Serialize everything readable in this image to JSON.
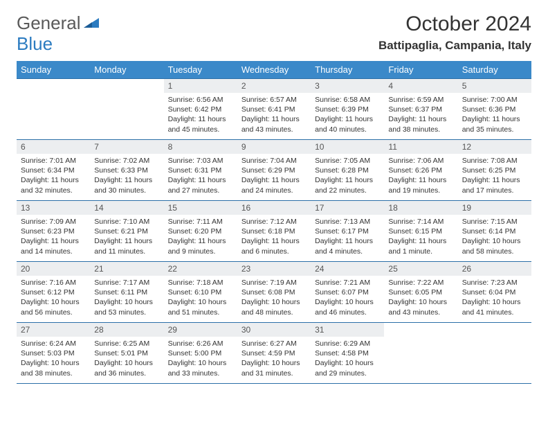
{
  "logo": {
    "part1": "General",
    "part2": "Blue"
  },
  "title": "October 2024",
  "location": "Battipaglia, Campania, Italy",
  "header_bg": "#3b89c9",
  "border_color": "#2b6fa8",
  "daynum_bg": "#eceef0",
  "weekdays": [
    "Sunday",
    "Monday",
    "Tuesday",
    "Wednesday",
    "Thursday",
    "Friday",
    "Saturday"
  ],
  "weeks": [
    [
      null,
      null,
      {
        "n": "1",
        "sr": "6:56 AM",
        "ss": "6:42 PM",
        "dl": "11 hours and 45 minutes."
      },
      {
        "n": "2",
        "sr": "6:57 AM",
        "ss": "6:41 PM",
        "dl": "11 hours and 43 minutes."
      },
      {
        "n": "3",
        "sr": "6:58 AM",
        "ss": "6:39 PM",
        "dl": "11 hours and 40 minutes."
      },
      {
        "n": "4",
        "sr": "6:59 AM",
        "ss": "6:37 PM",
        "dl": "11 hours and 38 minutes."
      },
      {
        "n": "5",
        "sr": "7:00 AM",
        "ss": "6:36 PM",
        "dl": "11 hours and 35 minutes."
      }
    ],
    [
      {
        "n": "6",
        "sr": "7:01 AM",
        "ss": "6:34 PM",
        "dl": "11 hours and 32 minutes."
      },
      {
        "n": "7",
        "sr": "7:02 AM",
        "ss": "6:33 PM",
        "dl": "11 hours and 30 minutes."
      },
      {
        "n": "8",
        "sr": "7:03 AM",
        "ss": "6:31 PM",
        "dl": "11 hours and 27 minutes."
      },
      {
        "n": "9",
        "sr": "7:04 AM",
        "ss": "6:29 PM",
        "dl": "11 hours and 24 minutes."
      },
      {
        "n": "10",
        "sr": "7:05 AM",
        "ss": "6:28 PM",
        "dl": "11 hours and 22 minutes."
      },
      {
        "n": "11",
        "sr": "7:06 AM",
        "ss": "6:26 PM",
        "dl": "11 hours and 19 minutes."
      },
      {
        "n": "12",
        "sr": "7:08 AM",
        "ss": "6:25 PM",
        "dl": "11 hours and 17 minutes."
      }
    ],
    [
      {
        "n": "13",
        "sr": "7:09 AM",
        "ss": "6:23 PM",
        "dl": "11 hours and 14 minutes."
      },
      {
        "n": "14",
        "sr": "7:10 AM",
        "ss": "6:21 PM",
        "dl": "11 hours and 11 minutes."
      },
      {
        "n": "15",
        "sr": "7:11 AM",
        "ss": "6:20 PM",
        "dl": "11 hours and 9 minutes."
      },
      {
        "n": "16",
        "sr": "7:12 AM",
        "ss": "6:18 PM",
        "dl": "11 hours and 6 minutes."
      },
      {
        "n": "17",
        "sr": "7:13 AM",
        "ss": "6:17 PM",
        "dl": "11 hours and 4 minutes."
      },
      {
        "n": "18",
        "sr": "7:14 AM",
        "ss": "6:15 PM",
        "dl": "11 hours and 1 minute."
      },
      {
        "n": "19",
        "sr": "7:15 AM",
        "ss": "6:14 PM",
        "dl": "10 hours and 58 minutes."
      }
    ],
    [
      {
        "n": "20",
        "sr": "7:16 AM",
        "ss": "6:12 PM",
        "dl": "10 hours and 56 minutes."
      },
      {
        "n": "21",
        "sr": "7:17 AM",
        "ss": "6:11 PM",
        "dl": "10 hours and 53 minutes."
      },
      {
        "n": "22",
        "sr": "7:18 AM",
        "ss": "6:10 PM",
        "dl": "10 hours and 51 minutes."
      },
      {
        "n": "23",
        "sr": "7:19 AM",
        "ss": "6:08 PM",
        "dl": "10 hours and 48 minutes."
      },
      {
        "n": "24",
        "sr": "7:21 AM",
        "ss": "6:07 PM",
        "dl": "10 hours and 46 minutes."
      },
      {
        "n": "25",
        "sr": "7:22 AM",
        "ss": "6:05 PM",
        "dl": "10 hours and 43 minutes."
      },
      {
        "n": "26",
        "sr": "7:23 AM",
        "ss": "6:04 PM",
        "dl": "10 hours and 41 minutes."
      }
    ],
    [
      {
        "n": "27",
        "sr": "6:24 AM",
        "ss": "5:03 PM",
        "dl": "10 hours and 38 minutes."
      },
      {
        "n": "28",
        "sr": "6:25 AM",
        "ss": "5:01 PM",
        "dl": "10 hours and 36 minutes."
      },
      {
        "n": "29",
        "sr": "6:26 AM",
        "ss": "5:00 PM",
        "dl": "10 hours and 33 minutes."
      },
      {
        "n": "30",
        "sr": "6:27 AM",
        "ss": "4:59 PM",
        "dl": "10 hours and 31 minutes."
      },
      {
        "n": "31",
        "sr": "6:29 AM",
        "ss": "4:58 PM",
        "dl": "10 hours and 29 minutes."
      },
      null,
      null
    ]
  ],
  "labels": {
    "sunrise": "Sunrise:",
    "sunset": "Sunset:",
    "daylight": "Daylight:"
  }
}
